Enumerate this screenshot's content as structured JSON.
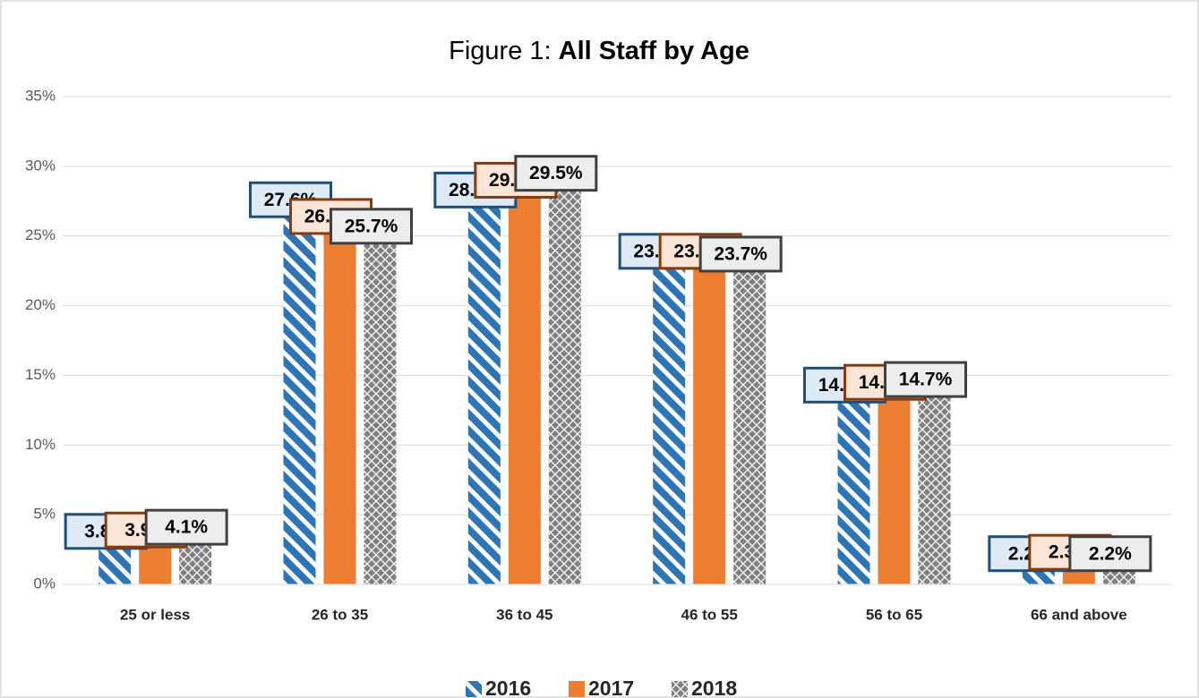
{
  "chart_data": {
    "type": "bar",
    "title": [
      "Figure 1:",
      "All Staff by Age"
    ],
    "categories": [
      "25 or less",
      "26 to 35",
      "36 to 45",
      "46 to 55",
      "56 to 65",
      "66 and above"
    ],
    "series": [
      {
        "name": "2016",
        "color": "#2e75b6",
        "pattern": "stripes",
        "label_fill": "#deebf7",
        "label_stroke": "#1f4e79",
        "values": [
          3.8,
          27.6,
          28.3,
          23.9,
          14.3,
          2.2
        ],
        "value_labels": [
          "3.8%",
          "27.6%",
          "28.3%",
          "23.9%",
          "14.3%",
          "2.2%"
        ]
      },
      {
        "name": "2017",
        "color": "#ed7d31",
        "pattern": "solid",
        "label_fill": "#fbe5d6",
        "label_stroke": "#843c0c",
        "values": [
          3.9,
          26.4,
          29.0,
          23.9,
          14.5,
          2.3
        ],
        "value_labels": [
          "3.9%",
          "26.4%",
          "29.0%",
          "23.9%",
          "14.5%",
          "2.3%"
        ]
      },
      {
        "name": "2018",
        "color": "#808080",
        "pattern": "crosshatch",
        "label_fill": "#ededed",
        "label_stroke": "#404040",
        "values": [
          4.1,
          25.7,
          29.5,
          23.7,
          14.7,
          2.2
        ],
        "value_labels": [
          "4.1%",
          "25.7%",
          "29.5%",
          "23.7%",
          "14.7%",
          "2.2%"
        ]
      }
    ],
    "ylim": [
      0,
      35
    ],
    "yticks": [
      {
        "value": 0,
        "label": "0%"
      },
      {
        "value": 5,
        "label": "5%"
      },
      {
        "value": 10,
        "label": "10%"
      },
      {
        "value": 15,
        "label": "15%"
      },
      {
        "value": 20,
        "label": "20%"
      },
      {
        "value": 25,
        "label": "25%"
      },
      {
        "value": 30,
        "label": "30%"
      },
      {
        "value": 35,
        "label": "35%"
      }
    ],
    "grid": true,
    "legend": "bottom"
  }
}
